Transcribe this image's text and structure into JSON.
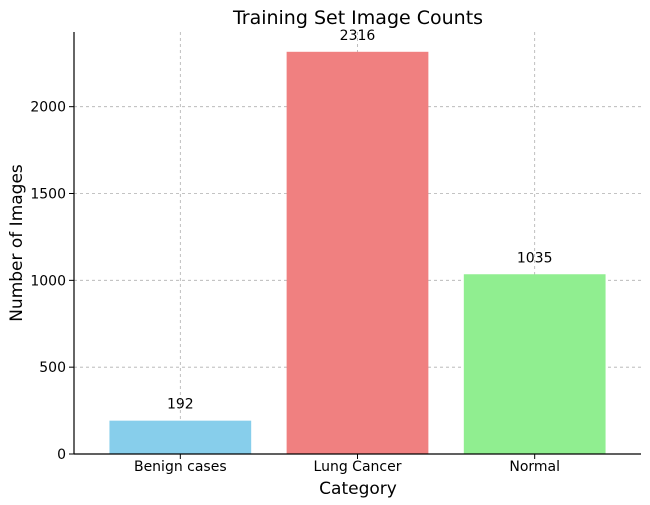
{
  "chart_data": {
    "type": "bar",
    "title": "Training Set Image Counts",
    "xlabel": "Category",
    "ylabel": "Number of Images",
    "categories": [
      "Benign cases",
      "Lung Cancer",
      "Normal"
    ],
    "values": [
      192,
      2316,
      1035
    ],
    "value_labels": [
      "192",
      "2316",
      "1035"
    ],
    "colors": [
      "#87ceeb",
      "#f08080",
      "#90ee90"
    ],
    "ylim": [
      0,
      2430
    ],
    "yticks": [
      0,
      500,
      1000,
      1500,
      2000
    ],
    "ytick_labels": [
      "0",
      "500",
      "1000",
      "1500",
      "2000"
    ],
    "grid": true,
    "grid_color": "#b0b0b0"
  }
}
